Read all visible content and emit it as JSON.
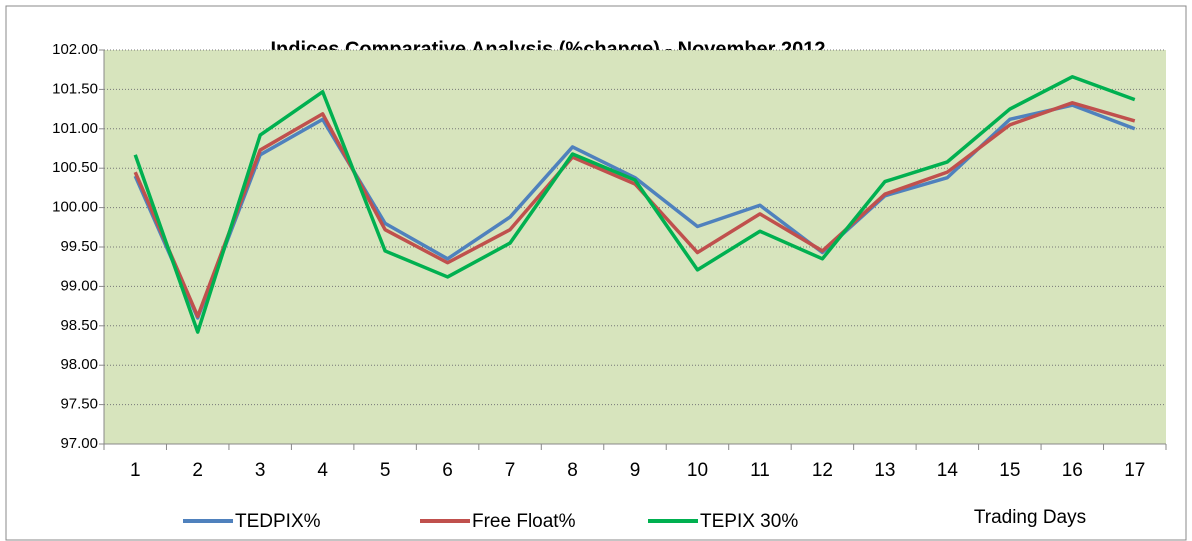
{
  "chart_data": {
    "type": "line",
    "title": "Indices Comparative Analysis (%change) - November 2012",
    "x_label": "Trading Days",
    "categories": [
      "1",
      "2",
      "3",
      "4",
      "5",
      "6",
      "7",
      "8",
      "9",
      "10",
      "11",
      "12",
      "13",
      "14",
      "15",
      "16",
      "17"
    ],
    "series": [
      {
        "name": "TEDPIX%",
        "color": "#4f81bd",
        "values": [
          100.4,
          98.6,
          100.67,
          101.12,
          99.8,
          99.35,
          99.88,
          100.77,
          100.38,
          99.76,
          100.03,
          99.43,
          100.15,
          100.38,
          101.12,
          101.3,
          101.0
        ]
      },
      {
        "name": "Free Float%",
        "color": "#c0504d",
        "values": [
          100.45,
          98.62,
          100.73,
          101.19,
          99.72,
          99.3,
          99.72,
          100.64,
          100.3,
          99.43,
          99.92,
          99.45,
          100.17,
          100.45,
          101.05,
          101.33,
          101.1
        ]
      },
      {
        "name": "TEPIX 30%",
        "color": "#00b050",
        "values": [
          100.67,
          98.42,
          100.92,
          101.47,
          99.45,
          99.12,
          99.55,
          100.68,
          100.35,
          99.21,
          99.7,
          99.35,
          100.33,
          100.58,
          101.25,
          101.66,
          101.37
        ]
      }
    ],
    "ylim": [
      97,
      102
    ],
    "yticks": [
      {
        "value": 97,
        "label": "97.00"
      },
      {
        "value": 97.5,
        "label": "97.50"
      },
      {
        "value": 98,
        "label": "98.00"
      },
      {
        "value": 98.5,
        "label": "98.50"
      },
      {
        "value": 99,
        "label": "99.00"
      },
      {
        "value": 99.5,
        "label": "99.50"
      },
      {
        "value": 100,
        "label": "100.00"
      },
      {
        "value": 100.5,
        "label": "100.50"
      },
      {
        "value": 101,
        "label": "101.00"
      },
      {
        "value": 101.5,
        "label": "101.50"
      },
      {
        "value": 102,
        "label": "102.00"
      }
    ],
    "grid": true,
    "plot_background": "#d7e4bd",
    "legend": "bottom"
  }
}
